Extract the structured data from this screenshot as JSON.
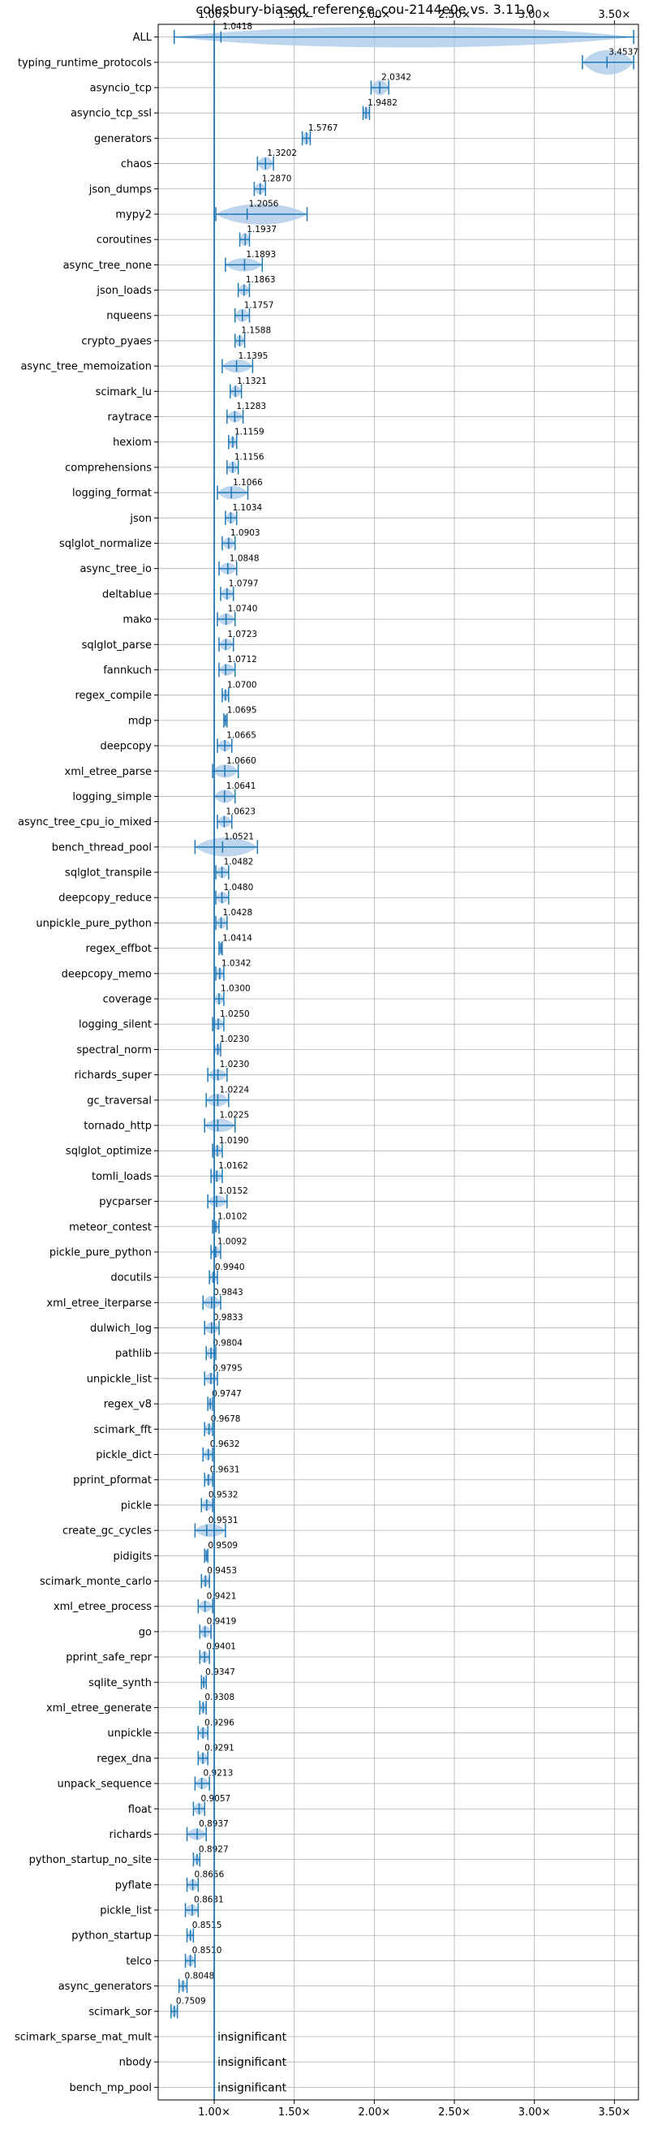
{
  "chart_data": {
    "type": "violin",
    "title": "colesbury-biased_reference_cou-2144e0e vs. 3.11.0",
    "xlim": [
      0.65,
      3.65
    ],
    "x_ticks": [
      {
        "value": 1.0,
        "label": "1.00×"
      },
      {
        "value": 1.5,
        "label": "1.50×"
      },
      {
        "value": 2.0,
        "label": "2.00×"
      },
      {
        "value": 2.5,
        "label": "2.50×"
      },
      {
        "value": 3.0,
        "label": "3.00×"
      },
      {
        "value": 3.5,
        "label": "3.50×"
      }
    ],
    "baseline": 1.0,
    "accent_color": "#1f77b4",
    "violin_fill": "#a7c7e7",
    "insignificant_label": "insignificant",
    "benchmarks": [
      {
        "name": "ALL",
        "value": 1.0418,
        "label": "1.0418",
        "lo": 0.75,
        "hi": 3.62,
        "w": 0.55
      },
      {
        "name": "typing_runtime_protocols",
        "value": 3.4537,
        "label": "3.4537",
        "lo": 3.3,
        "hi": 3.62,
        "w": 0.65
      },
      {
        "name": "asyncio_tcp",
        "value": 2.0342,
        "label": "2.0342",
        "lo": 1.98,
        "hi": 2.09,
        "w": 0.4
      },
      {
        "name": "asyncio_tcp_ssl",
        "value": 1.9482,
        "label": "1.9482",
        "lo": 1.93,
        "hi": 1.97,
        "w": 0.35
      },
      {
        "name": "generators",
        "value": 1.5767,
        "label": "1.5767",
        "lo": 1.55,
        "hi": 1.6,
        "w": 0.35
      },
      {
        "name": "chaos",
        "value": 1.3202,
        "label": "1.3202",
        "lo": 1.27,
        "hi": 1.37,
        "w": 0.35
      },
      {
        "name": "json_dumps",
        "value": 1.287,
        "label": "1.2870",
        "lo": 1.25,
        "hi": 1.32,
        "w": 0.3
      },
      {
        "name": "mypy2",
        "value": 1.2056,
        "label": "1.2056",
        "lo": 1.01,
        "hi": 1.58,
        "w": 0.55
      },
      {
        "name": "coroutines",
        "value": 1.1937,
        "label": "1.1937",
        "lo": 1.16,
        "hi": 1.22,
        "w": 0.35
      },
      {
        "name": "async_tree_none",
        "value": 1.1893,
        "label": "1.1893",
        "lo": 1.07,
        "hi": 1.3,
        "w": 0.35
      },
      {
        "name": "json_loads",
        "value": 1.1863,
        "label": "1.1863",
        "lo": 1.15,
        "hi": 1.22,
        "w": 0.3
      },
      {
        "name": "nqueens",
        "value": 1.1757,
        "label": "1.1757",
        "lo": 1.13,
        "hi": 1.22,
        "w": 0.35
      },
      {
        "name": "crypto_pyaes",
        "value": 1.1588,
        "label": "1.1588",
        "lo": 1.13,
        "hi": 1.19,
        "w": 0.3
      },
      {
        "name": "async_tree_memoization",
        "value": 1.1395,
        "label": "1.1395",
        "lo": 1.05,
        "hi": 1.24,
        "w": 0.35
      },
      {
        "name": "scimark_lu",
        "value": 1.1321,
        "label": "1.1321",
        "lo": 1.1,
        "hi": 1.17,
        "w": 0.3
      },
      {
        "name": "raytrace",
        "value": 1.1283,
        "label": "1.1283",
        "lo": 1.08,
        "hi": 1.18,
        "w": 0.3
      },
      {
        "name": "hexiom",
        "value": 1.1159,
        "label": "1.1159",
        "lo": 1.09,
        "hi": 1.14,
        "w": 0.3
      },
      {
        "name": "comprehensions",
        "value": 1.1156,
        "label": "1.1156",
        "lo": 1.08,
        "hi": 1.15,
        "w": 0.3
      },
      {
        "name": "logging_format",
        "value": 1.1066,
        "label": "1.1066",
        "lo": 1.02,
        "hi": 1.21,
        "w": 0.35
      },
      {
        "name": "json",
        "value": 1.1034,
        "label": "1.1034",
        "lo": 1.07,
        "hi": 1.14,
        "w": 0.3
      },
      {
        "name": "sqlglot_normalize",
        "value": 1.0903,
        "label": "1.0903",
        "lo": 1.05,
        "hi": 1.13,
        "w": 0.3
      },
      {
        "name": "async_tree_io",
        "value": 1.0848,
        "label": "1.0848",
        "lo": 1.03,
        "hi": 1.14,
        "w": 0.3
      },
      {
        "name": "deltablue",
        "value": 1.0797,
        "label": "1.0797",
        "lo": 1.04,
        "hi": 1.12,
        "w": 0.3
      },
      {
        "name": "mako",
        "value": 1.074,
        "label": "1.0740",
        "lo": 1.02,
        "hi": 1.13,
        "w": 0.3
      },
      {
        "name": "sqlglot_parse",
        "value": 1.0723,
        "label": "1.0723",
        "lo": 1.03,
        "hi": 1.12,
        "w": 0.3
      },
      {
        "name": "fannkuch",
        "value": 1.0712,
        "label": "1.0712",
        "lo": 1.03,
        "hi": 1.13,
        "w": 0.3
      },
      {
        "name": "regex_compile",
        "value": 1.07,
        "label": "1.0700",
        "lo": 1.05,
        "hi": 1.09,
        "w": 0.3
      },
      {
        "name": "mdp",
        "value": 1.0695,
        "label": "1.0695",
        "lo": 1.06,
        "hi": 1.08,
        "w": 0.25
      },
      {
        "name": "deepcopy",
        "value": 1.0665,
        "label": "1.0665",
        "lo": 1.02,
        "hi": 1.11,
        "w": 0.3
      },
      {
        "name": "xml_etree_parse",
        "value": 1.066,
        "label": "1.0660",
        "lo": 0.99,
        "hi": 1.15,
        "w": 0.35
      },
      {
        "name": "logging_simple",
        "value": 1.0641,
        "label": "1.0641",
        "lo": 1.0,
        "hi": 1.13,
        "w": 0.35
      },
      {
        "name": "async_tree_cpu_io_mixed",
        "value": 1.0623,
        "label": "1.0623",
        "lo": 1.02,
        "hi": 1.11,
        "w": 0.3
      },
      {
        "name": "bench_thread_pool",
        "value": 1.0521,
        "label": "1.0521",
        "lo": 0.88,
        "hi": 1.27,
        "w": 0.5
      },
      {
        "name": "sqlglot_transpile",
        "value": 1.0482,
        "label": "1.0482",
        "lo": 1.01,
        "hi": 1.09,
        "w": 0.3
      },
      {
        "name": "deepcopy_reduce",
        "value": 1.048,
        "label": "1.0480",
        "lo": 1.01,
        "hi": 1.09,
        "w": 0.3
      },
      {
        "name": "unpickle_pure_python",
        "value": 1.0428,
        "label": "1.0428",
        "lo": 1.01,
        "hi": 1.08,
        "w": 0.3
      },
      {
        "name": "regex_effbot",
        "value": 1.0414,
        "label": "1.0414",
        "lo": 1.03,
        "hi": 1.05,
        "w": 0.25
      },
      {
        "name": "deepcopy_memo",
        "value": 1.0342,
        "label": "1.0342",
        "lo": 1.01,
        "hi": 1.06,
        "w": 0.3
      },
      {
        "name": "coverage",
        "value": 1.03,
        "label": "1.0300",
        "lo": 1.0,
        "hi": 1.06,
        "w": 0.3
      },
      {
        "name": "logging_silent",
        "value": 1.025,
        "label": "1.0250",
        "lo": 0.99,
        "hi": 1.06,
        "w": 0.3
      },
      {
        "name": "spectral_norm",
        "value": 1.023,
        "label": "1.0230",
        "lo": 1.0,
        "hi": 1.04,
        "w": 0.3
      },
      {
        "name": "richards_super",
        "value": 1.023,
        "label": "1.0230",
        "lo": 0.96,
        "hi": 1.08,
        "w": 0.3
      },
      {
        "name": "gc_traversal",
        "value": 1.0224,
        "label": "1.0224",
        "lo": 0.95,
        "hi": 1.09,
        "w": 0.35
      },
      {
        "name": "tornado_http",
        "value": 1.0225,
        "label": "1.0225",
        "lo": 0.94,
        "hi": 1.13,
        "w": 0.35
      },
      {
        "name": "sqlglot_optimize",
        "value": 1.019,
        "label": "1.0190",
        "lo": 0.99,
        "hi": 1.05,
        "w": 0.3
      },
      {
        "name": "tomli_loads",
        "value": 1.0162,
        "label": "1.0162",
        "lo": 0.98,
        "hi": 1.05,
        "w": 0.3
      },
      {
        "name": "pycparser",
        "value": 1.0152,
        "label": "1.0152",
        "lo": 0.96,
        "hi": 1.08,
        "w": 0.3
      },
      {
        "name": "meteor_contest",
        "value": 1.0102,
        "label": "1.0102",
        "lo": 0.99,
        "hi": 1.03,
        "w": 0.25
      },
      {
        "name": "pickle_pure_python",
        "value": 1.0092,
        "label": "1.0092",
        "lo": 0.98,
        "hi": 1.04,
        "w": 0.3
      },
      {
        "name": "docutils",
        "value": 0.994,
        "label": "0.9940",
        "lo": 0.97,
        "hi": 1.02,
        "w": 0.3
      },
      {
        "name": "xml_etree_iterparse",
        "value": 0.9843,
        "label": "0.9843",
        "lo": 0.93,
        "hi": 1.04,
        "w": 0.35
      },
      {
        "name": "dulwich_log",
        "value": 0.9833,
        "label": "0.9833",
        "lo": 0.94,
        "hi": 1.03,
        "w": 0.3
      },
      {
        "name": "pathlib",
        "value": 0.9804,
        "label": "0.9804",
        "lo": 0.95,
        "hi": 1.01,
        "w": 0.3
      },
      {
        "name": "unpickle_list",
        "value": 0.9795,
        "label": "0.9795",
        "lo": 0.94,
        "hi": 1.02,
        "w": 0.3
      },
      {
        "name": "regex_v8",
        "value": 0.9747,
        "label": "0.9747",
        "lo": 0.96,
        "hi": 0.99,
        "w": 0.25
      },
      {
        "name": "scimark_fft",
        "value": 0.9678,
        "label": "0.9678",
        "lo": 0.94,
        "hi": 0.99,
        "w": 0.3
      },
      {
        "name": "pickle_dict",
        "value": 0.9632,
        "label": "0.9632",
        "lo": 0.93,
        "hi": 0.99,
        "w": 0.3
      },
      {
        "name": "pprint_pformat",
        "value": 0.9631,
        "label": "0.9631",
        "lo": 0.94,
        "hi": 0.99,
        "w": 0.3
      },
      {
        "name": "pickle",
        "value": 0.9532,
        "label": "0.9532",
        "lo": 0.92,
        "hi": 0.99,
        "w": 0.3
      },
      {
        "name": "create_gc_cycles",
        "value": 0.9531,
        "label": "0.9531",
        "lo": 0.88,
        "hi": 1.07,
        "w": 0.35
      },
      {
        "name": "pidigits",
        "value": 0.9509,
        "label": "0.9509",
        "lo": 0.94,
        "hi": 0.96,
        "w": 0.25
      },
      {
        "name": "scimark_monte_carlo",
        "value": 0.9453,
        "label": "0.9453",
        "lo": 0.92,
        "hi": 0.97,
        "w": 0.3
      },
      {
        "name": "xml_etree_process",
        "value": 0.9421,
        "label": "0.9421",
        "lo": 0.9,
        "hi": 0.99,
        "w": 0.3
      },
      {
        "name": "go",
        "value": 0.9419,
        "label": "0.9419",
        "lo": 0.91,
        "hi": 0.98,
        "w": 0.3
      },
      {
        "name": "pprint_safe_repr",
        "value": 0.9401,
        "label": "0.9401",
        "lo": 0.91,
        "hi": 0.97,
        "w": 0.3
      },
      {
        "name": "sqlite_synth",
        "value": 0.9347,
        "label": "0.9347",
        "lo": 0.92,
        "hi": 0.95,
        "w": 0.25
      },
      {
        "name": "xml_etree_generate",
        "value": 0.9308,
        "label": "0.9308",
        "lo": 0.91,
        "hi": 0.95,
        "w": 0.3
      },
      {
        "name": "unpickle",
        "value": 0.9296,
        "label": "0.9296",
        "lo": 0.9,
        "hi": 0.96,
        "w": 0.3
      },
      {
        "name": "regex_dna",
        "value": 0.9291,
        "label": "0.9291",
        "lo": 0.9,
        "hi": 0.96,
        "w": 0.3
      },
      {
        "name": "unpack_sequence",
        "value": 0.9213,
        "label": "0.9213",
        "lo": 0.88,
        "hi": 0.97,
        "w": 0.3
      },
      {
        "name": "float",
        "value": 0.9057,
        "label": "0.9057",
        "lo": 0.87,
        "hi": 0.94,
        "w": 0.3
      },
      {
        "name": "richards",
        "value": 0.8937,
        "label": "0.8937",
        "lo": 0.83,
        "hi": 0.95,
        "w": 0.3
      },
      {
        "name": "python_startup_no_site",
        "value": 0.8927,
        "label": "0.8927",
        "lo": 0.87,
        "hi": 0.91,
        "w": 0.25
      },
      {
        "name": "pyflate",
        "value": 0.8656,
        "label": "0.8656",
        "lo": 0.83,
        "hi": 0.9,
        "w": 0.3
      },
      {
        "name": "pickle_list",
        "value": 0.8631,
        "label": "0.8631",
        "lo": 0.82,
        "hi": 0.9,
        "w": 0.3
      },
      {
        "name": "python_startup",
        "value": 0.8515,
        "label": "0.8515",
        "lo": 0.83,
        "hi": 0.87,
        "w": 0.25
      },
      {
        "name": "telco",
        "value": 0.851,
        "label": "0.8510",
        "lo": 0.82,
        "hi": 0.88,
        "w": 0.3
      },
      {
        "name": "async_generators",
        "value": 0.8048,
        "label": "0.8048",
        "lo": 0.78,
        "hi": 0.83,
        "w": 0.3
      },
      {
        "name": "scimark_sor",
        "value": 0.7509,
        "label": "0.7509",
        "lo": 0.73,
        "hi": 0.77,
        "w": 0.3
      },
      {
        "name": "scimark_sparse_mat_mult",
        "value": null,
        "label": null,
        "insignificant": true
      },
      {
        "name": "nbody",
        "value": null,
        "label": null,
        "insignificant": true
      },
      {
        "name": "bench_mp_pool",
        "value": null,
        "label": null,
        "insignificant": true
      }
    ]
  }
}
